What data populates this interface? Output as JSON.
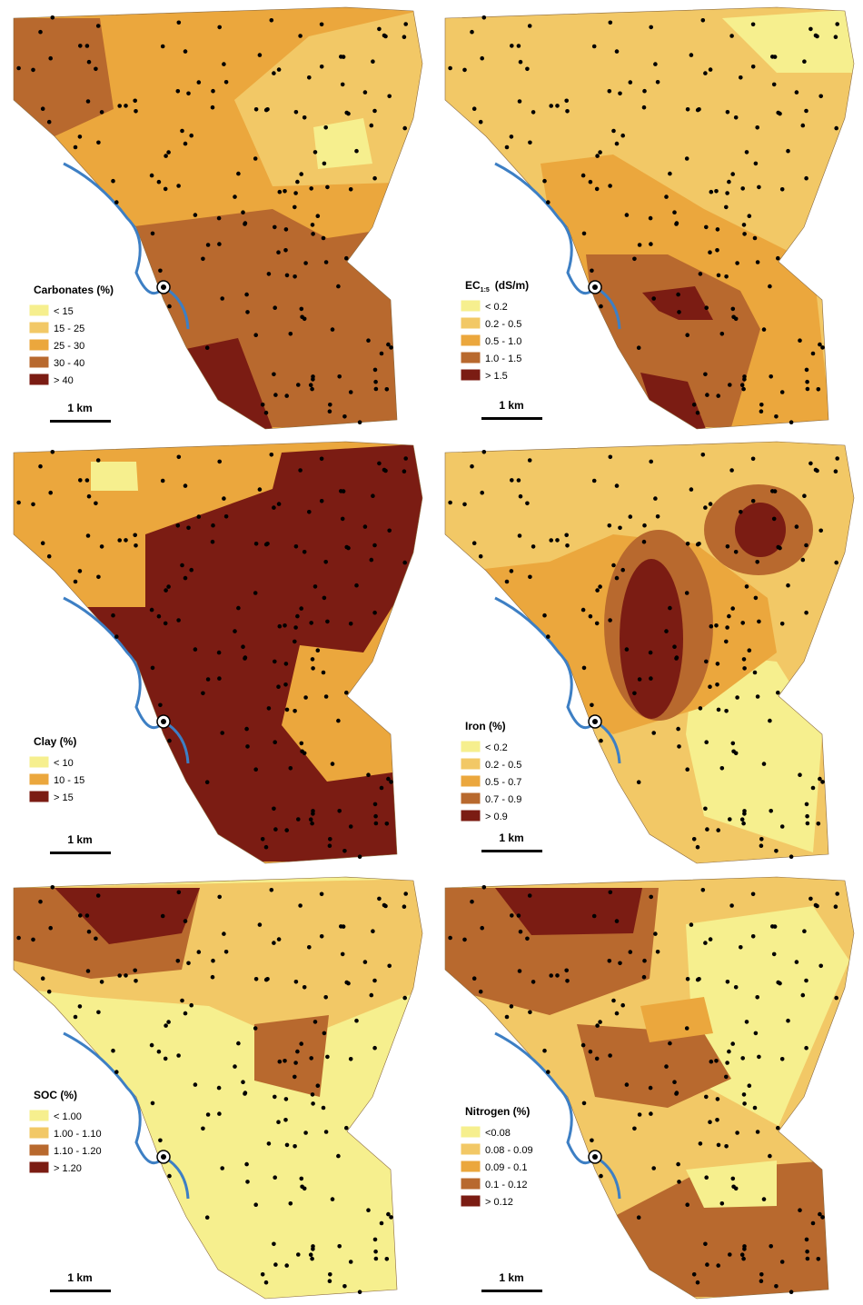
{
  "panels": [
    {
      "title": "Carbonates (%)",
      "classes": [
        "< 15",
        "15 - 25",
        "25 - 30",
        "30 - 40",
        "> 40"
      ],
      "colors": [
        "#f6ef8e",
        "#f2c866",
        "#eba73d",
        "#b8692e",
        "#7b1c13"
      ],
      "scale": "1 km"
    },
    {
      "title": "EC",
      "title_subscript": "1:5",
      "title_unit": "(dS/m)",
      "classes": [
        "< 0.2",
        "0.2 - 0.5",
        "0.5 - 1.0",
        "1.0 - 1.5",
        "> 1.5"
      ],
      "colors": [
        "#f6ef8e",
        "#f2c866",
        "#eba73d",
        "#b8692e",
        "#7b1c13"
      ],
      "scale": "1 km"
    },
    {
      "title": "Clay (%)",
      "classes": [
        "< 10",
        "10 - 15",
        "> 15"
      ],
      "colors": [
        "#f6ef8e",
        "#eba73d",
        "#7b1c13"
      ],
      "scale": "1 km"
    },
    {
      "title": "Iron (%)",
      "classes": [
        "< 0.2",
        "0.2 - 0.5",
        "0.5 - 0.7",
        "0.7 - 0.9",
        "> 0.9"
      ],
      "colors": [
        "#f6ef8e",
        "#f2c866",
        "#eba73d",
        "#b8692e",
        "#7b1c13"
      ],
      "scale": "1 km"
    },
    {
      "title": "SOC (%)",
      "classes": [
        "< 1.00",
        "1.00 - 1.10",
        "1.10 - 1.20",
        "> 1.20"
      ],
      "colors": [
        "#f6ef8e",
        "#f2c866",
        "#b8692e",
        "#7b1c13"
      ],
      "scale": "1 km"
    },
    {
      "title": "Nitrogen (%)",
      "classes": [
        "<0.08",
        "0.08 - 0.09",
        "0.09 - 0.1",
        "0.1 - 0.12",
        "> 0.12"
      ],
      "colors": [
        "#f6ef8e",
        "#f2c866",
        "#eba73d",
        "#b8692e",
        "#7b1c13"
      ],
      "scale": "1 km"
    }
  ]
}
